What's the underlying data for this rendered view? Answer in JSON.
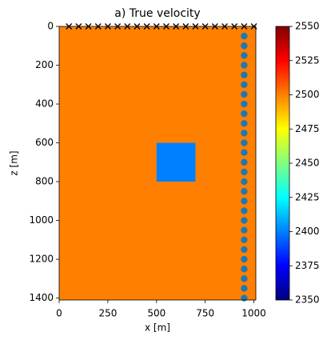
{
  "chart_data": {
    "type": "image",
    "title": "a) True velocity",
    "x_label": "x [m]",
    "y_label": "z [m]",
    "colormap": "jet",
    "xlim": [
      0,
      1010
    ],
    "ylim": [
      1410,
      0
    ],
    "xticks": [
      0,
      250,
      500,
      750,
      1000
    ],
    "yticks": [
      0,
      200,
      400,
      600,
      800,
      1000,
      1200,
      1400
    ],
    "background": 2500,
    "anomaly": {
      "x": [
        500,
        700
      ],
      "z": [
        600,
        800
      ],
      "value": 2400
    },
    "sources": {
      "color": "#000000",
      "x": [
        50,
        100,
        150,
        200,
        250,
        300,
        350,
        400,
        450,
        500,
        550,
        600,
        650,
        700,
        750,
        800,
        850,
        900,
        950,
        1000
      ],
      "z": [
        0,
        0,
        0,
        0,
        0,
        0,
        0,
        0,
        0,
        0,
        0,
        0,
        0,
        0,
        0,
        0,
        0,
        0,
        0,
        0
      ]
    },
    "receivers": {
      "color": "#1f77b4",
      "x": [
        950,
        950,
        950,
        950,
        950,
        950,
        950,
        950,
        950,
        950,
        950,
        950,
        950,
        950,
        950,
        950,
        950,
        950,
        950,
        950,
        950,
        950,
        950,
        950,
        950,
        950,
        950,
        950
      ],
      "z": [
        50,
        100,
        150,
        200,
        250,
        300,
        350,
        400,
        450,
        500,
        550,
        600,
        650,
        700,
        750,
        800,
        850,
        900,
        950,
        1000,
        1050,
        1100,
        1150,
        1200,
        1250,
        1300,
        1350,
        1400
      ]
    },
    "colorbar": {
      "lim": [
        2350,
        2550
      ],
      "ticks": [
        2350,
        2375,
        2400,
        2425,
        2450,
        2475,
        2500,
        2525,
        2550
      ]
    }
  }
}
